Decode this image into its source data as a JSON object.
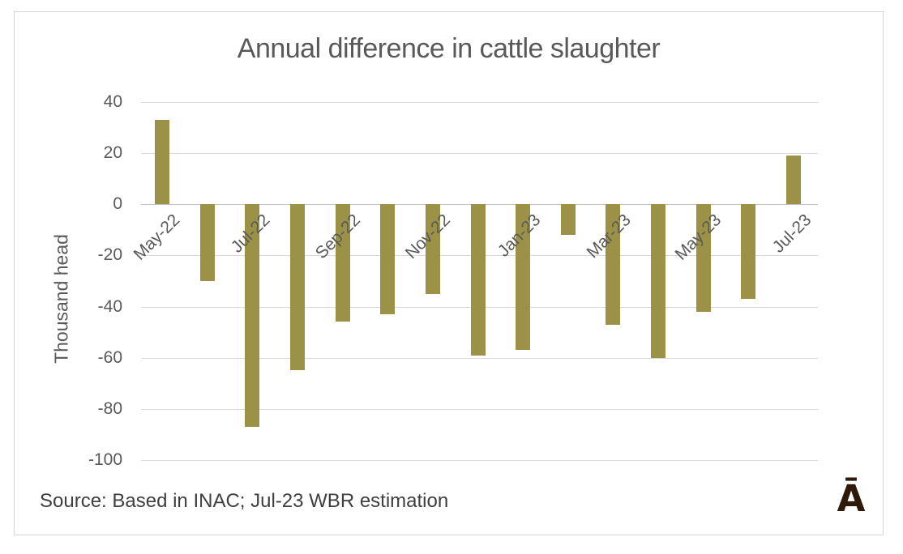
{
  "chart_data": {
    "type": "bar",
    "title": "Annual difference in cattle slaughter",
    "xlabel": "",
    "ylabel": "Thousand head",
    "categories": [
      "May-22",
      "Jun-22",
      "Jul-22",
      "Aug-22",
      "Sep-22",
      "Oct-22",
      "Nov-22",
      "Dec-22",
      "Jan-23",
      "Feb-23",
      "Mar-23",
      "Apr-23",
      "May-23",
      "Jun-23",
      "Jul-23"
    ],
    "values": [
      33,
      -30,
      -87,
      -65,
      -46,
      -43,
      -35,
      -59,
      -57,
      -12,
      -47,
      -60,
      -42,
      -37,
      19
    ],
    "ylim": [
      -100,
      40
    ],
    "y_ticks": [
      40,
      20,
      0,
      -20,
      -40,
      -60,
      -80,
      -100
    ],
    "x_tick_labels": [
      "May-22",
      "Jul-22",
      "Sep-22",
      "Nov-22",
      "Jan-23",
      "Mar-23",
      "May-23",
      "Jul-23"
    ],
    "x_label_every": 2,
    "grid": "horizontal",
    "legend": "none",
    "bar_color": "#9b9247",
    "gridline_color": "#d9d9d9",
    "text_color": "#595959"
  },
  "source_note": "Source: Based in INAC; Jul-23 WBR estimation",
  "logo_glyph": "Ā"
}
